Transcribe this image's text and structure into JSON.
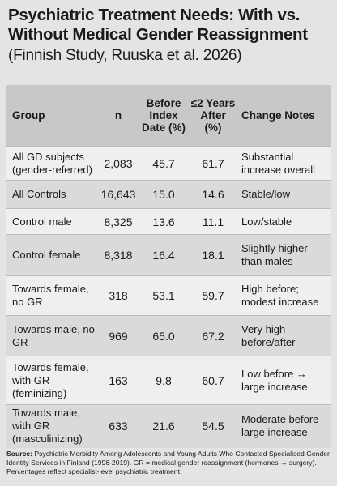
{
  "header": {
    "title": "Psychiatric Treatment Needs: With vs. Without Medical Gender Reassignment",
    "subtitle": "(Finnish Study, Ruuska et al. 2026)"
  },
  "table": {
    "columns": [
      "Group",
      "n",
      "Before Index Date (%)",
      "≤2 Years After (%)",
      "Change Notes"
    ],
    "rows": [
      [
        "All GD subjects (gender-referred)",
        "2,083",
        "45.7",
        "61.7",
        "Substantial increase overall"
      ],
      [
        "All Controls",
        "16,643",
        "15.0",
        "14.6",
        "Stable/low"
      ],
      [
        "Control male",
        "8,325",
        "13.6",
        "11.1",
        "Low/stable"
      ],
      [
        "Control female",
        "8,318",
        "16.4",
        "18.1",
        "Slightly higher than males"
      ],
      [
        "Towards female, no GR",
        "318",
        "53.1",
        "59.7",
        "High before; modest increase"
      ],
      [
        "Towards male, no GR",
        "969",
        "65.0",
        "67.2",
        "Very high before/after"
      ],
      [
        "Towards female, with GR (feminizing)",
        "163",
        "9.8",
        "60.7",
        "Low before → large increase"
      ],
      [
        "Towards male, with GR (masculinizing)",
        "633",
        "21.6",
        "54.5",
        "Moderate before -large increase"
      ]
    ]
  },
  "source": {
    "label": "Source:",
    "text": "Psychiatric Morbidity Among Adolescents and Young Adults Who Contacted Specialised Gender Identity Services in Finland (1996-2019). GR = medical gender reassignment (hormones → surgery). Percentages reflect specialist-level psychiatric treatment."
  }
}
